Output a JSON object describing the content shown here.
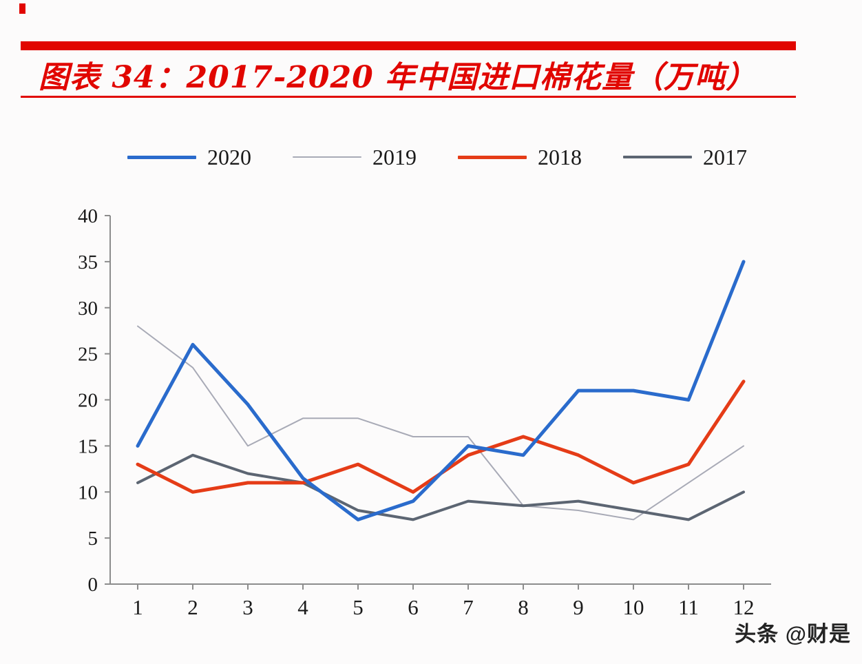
{
  "header": {
    "title": "图表 34：2017-2020 年中国进口棉花量（万吨）"
  },
  "watermark": "头条 @财是",
  "chart_data": {
    "type": "line",
    "title": "图表 34：2017-2020 年中国进口棉花量（万吨）",
    "xlabel": "",
    "ylabel": "",
    "unit": "万吨",
    "ylim": [
      0,
      40
    ],
    "ytick_step": 5,
    "yticks": [
      0,
      5,
      10,
      15,
      20,
      25,
      30,
      35,
      40
    ],
    "grid": false,
    "legend_position": "top",
    "categories": [
      "1",
      "2",
      "3",
      "4",
      "5",
      "6",
      "7",
      "8",
      "9",
      "10",
      "11",
      "12"
    ],
    "series": [
      {
        "name": "2020",
        "color": "#2a6bcc",
        "stroke_width": 5,
        "values": [
          15,
          26,
          19.5,
          11.5,
          7,
          9,
          15,
          14,
          21,
          21,
          20,
          35
        ]
      },
      {
        "name": "2019",
        "color": "#a8aab6",
        "stroke_width": 2,
        "values": [
          28,
          23.5,
          15,
          18,
          18,
          16,
          16,
          8.5,
          8,
          7,
          11,
          15
        ]
      },
      {
        "name": "2018",
        "color": "#e53c17",
        "stroke_width": 5,
        "values": [
          13,
          10,
          11,
          11,
          13,
          10,
          14,
          16,
          14,
          11,
          13,
          22
        ]
      },
      {
        "name": "2017",
        "color": "#5c6572",
        "stroke_width": 4,
        "values": [
          11,
          14,
          12,
          11,
          8,
          7,
          9,
          8.5,
          9,
          8,
          7,
          10
        ]
      }
    ]
  }
}
